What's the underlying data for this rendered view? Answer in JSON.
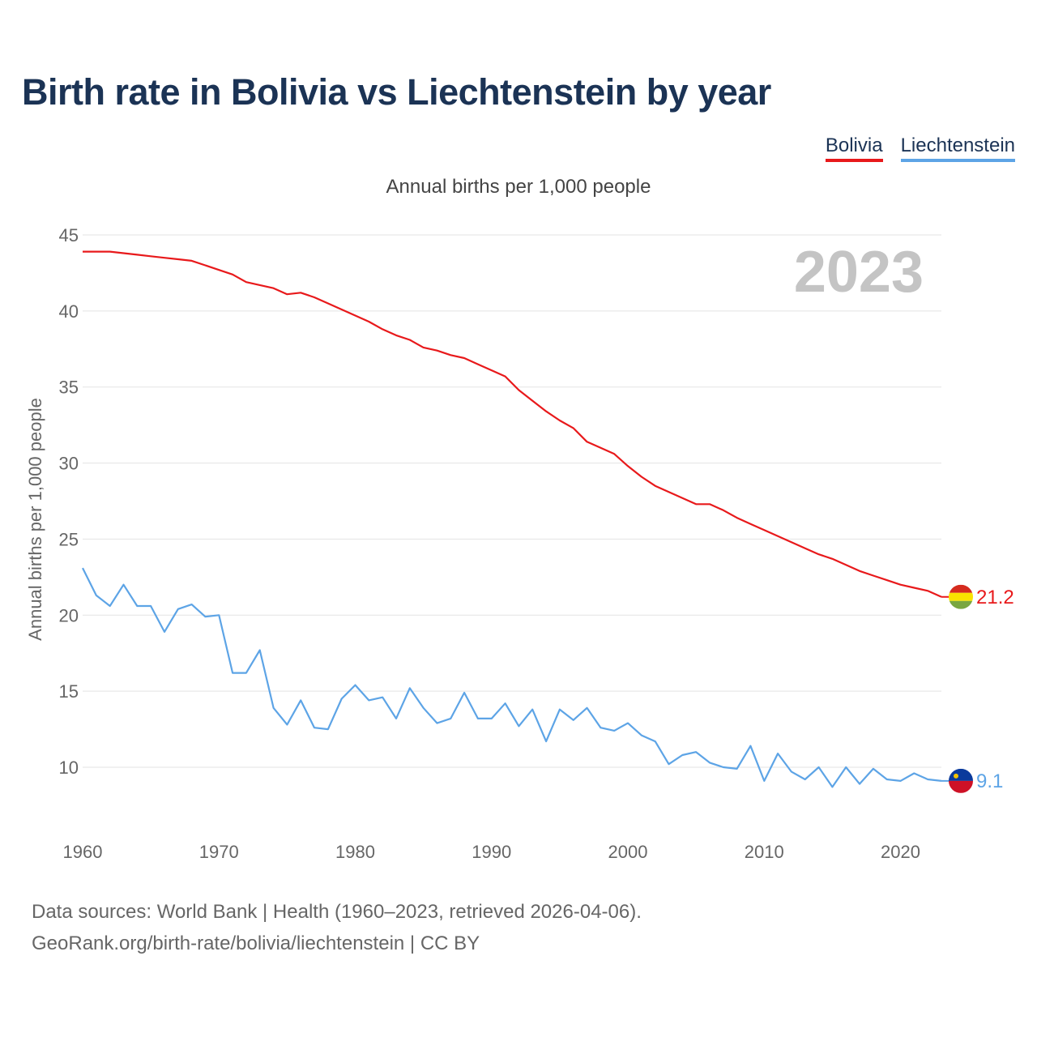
{
  "title": "Birth rate in Bolivia vs Liechtenstein by year",
  "subtitle": "Annual births per 1,000 people",
  "source_line1": "Data sources: World Bank | Health (1960–2023, retrieved 2026-04-06).",
  "source_line2": "GeoRank.org/birth-rate/bolivia/liechtenstein | CC BY",
  "chart_data": {
    "type": "line",
    "title": "Birth rate in Bolivia vs Liechtenstein by year",
    "ylabel": "Annual births per 1,000 people",
    "xlabel": "",
    "year_label": "2023",
    "ylim": [
      5.5,
      46
    ],
    "xlim": [
      1960,
      2023
    ],
    "yticks": [
      10,
      15,
      20,
      25,
      30,
      35,
      40,
      45
    ],
    "xticks": [
      1960,
      1970,
      1980,
      1990,
      2000,
      2010,
      2020
    ],
    "x": [
      1960,
      1961,
      1962,
      1963,
      1964,
      1965,
      1966,
      1967,
      1968,
      1969,
      1970,
      1971,
      1972,
      1973,
      1974,
      1975,
      1976,
      1977,
      1978,
      1979,
      1980,
      1981,
      1982,
      1983,
      1984,
      1985,
      1986,
      1987,
      1988,
      1989,
      1990,
      1991,
      1992,
      1993,
      1994,
      1995,
      1996,
      1997,
      1998,
      1999,
      2000,
      2001,
      2002,
      2003,
      2004,
      2005,
      2006,
      2007,
      2008,
      2009,
      2010,
      2011,
      2012,
      2013,
      2014,
      2015,
      2016,
      2017,
      2018,
      2019,
      2020,
      2021,
      2022,
      2023
    ],
    "series": [
      {
        "name": "Bolivia",
        "color": "#e8191b",
        "end_label": "21.2",
        "values": [
          43.9,
          43.9,
          43.9,
          43.8,
          43.7,
          43.6,
          43.5,
          43.4,
          43.3,
          43.0,
          42.7,
          42.4,
          41.9,
          41.7,
          41.5,
          41.1,
          41.2,
          40.9,
          40.5,
          40.1,
          39.7,
          39.3,
          38.8,
          38.4,
          38.1,
          37.6,
          37.4,
          37.1,
          36.9,
          36.5,
          36.1,
          35.7,
          34.8,
          34.1,
          33.4,
          32.8,
          32.3,
          31.4,
          31.0,
          30.6,
          29.8,
          29.1,
          28.5,
          28.1,
          27.7,
          27.3,
          27.3,
          26.9,
          26.4,
          26.0,
          25.6,
          25.2,
          24.8,
          24.4,
          24.0,
          23.7,
          23.3,
          22.9,
          22.6,
          22.3,
          22.0,
          21.8,
          21.6,
          21.2
        ]
      },
      {
        "name": "Liechtenstein",
        "color": "#5da4e6",
        "end_label": "9.1",
        "values": [
          23.1,
          21.3,
          20.6,
          22.0,
          20.6,
          20.6,
          18.9,
          20.4,
          20.7,
          19.9,
          20.0,
          16.2,
          16.2,
          17.7,
          13.9,
          12.8,
          14.4,
          12.6,
          12.5,
          14.5,
          15.4,
          14.4,
          14.6,
          13.2,
          15.2,
          13.9,
          12.9,
          13.2,
          14.9,
          13.2,
          13.2,
          14.2,
          12.7,
          13.8,
          11.7,
          13.8,
          13.1,
          13.9,
          12.6,
          12.4,
          12.9,
          12.1,
          11.7,
          10.2,
          10.8,
          11.0,
          10.3,
          10.0,
          9.9,
          11.4,
          9.1,
          10.9,
          9.7,
          9.2,
          10.0,
          8.7,
          10.0,
          8.9,
          9.9,
          9.2,
          9.1,
          9.6,
          9.2,
          9.1
        ]
      }
    ]
  }
}
